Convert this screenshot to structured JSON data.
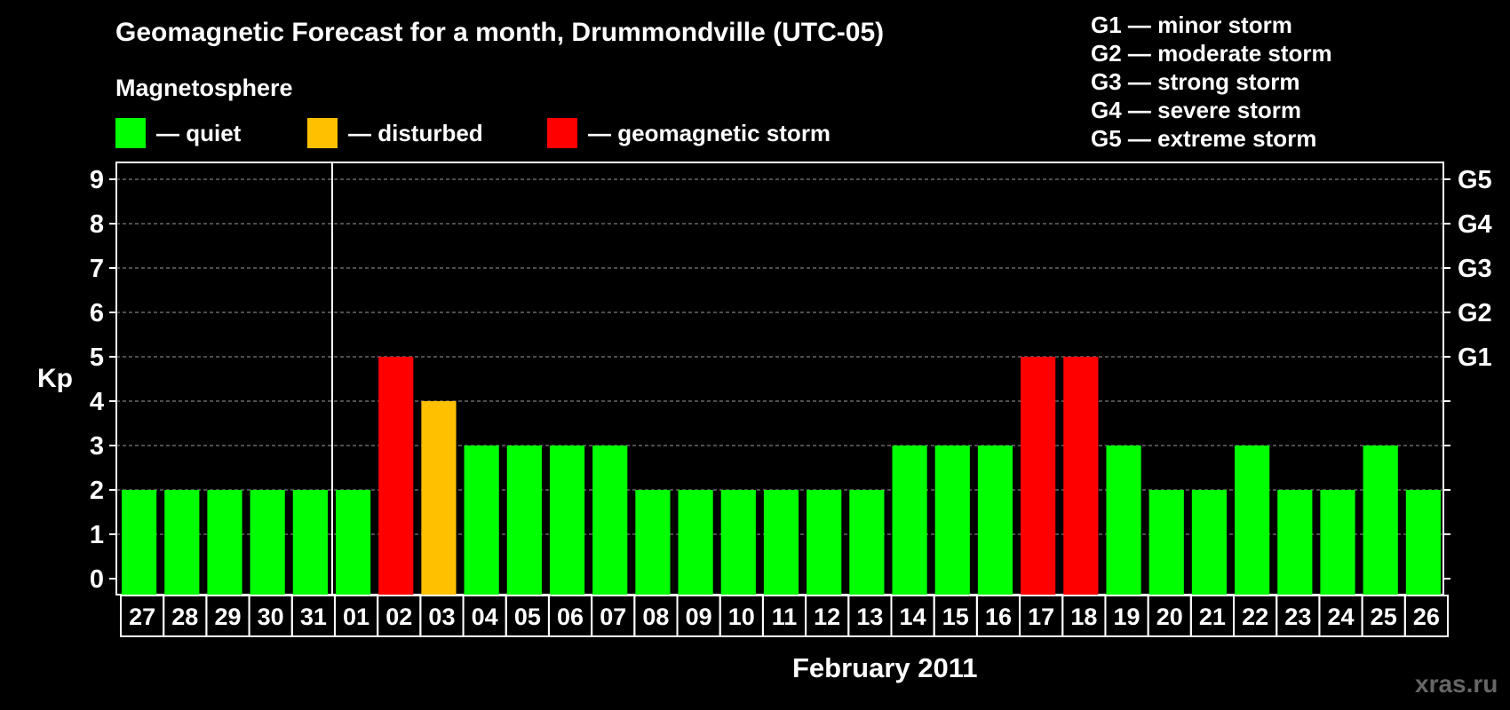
{
  "chart_data": {
    "type": "bar",
    "title": "Geomagnetic Forecast for a month, Drummondville (UTC-05)",
    "subtitle": "Magnetosphere",
    "ylabel": "Kp",
    "xlabel": "February 2011",
    "ylim": [
      0,
      9
    ],
    "yticks": [
      "0",
      "1",
      "2",
      "3",
      "4",
      "5",
      "6",
      "7",
      "8",
      "9"
    ],
    "right_ticks": [
      {
        "value": 5,
        "label": "G1"
      },
      {
        "value": 6,
        "label": "G2"
      },
      {
        "value": 7,
        "label": "G3"
      },
      {
        "value": 8,
        "label": "G4"
      },
      {
        "value": 9,
        "label": "G5"
      }
    ],
    "categories": [
      "27",
      "28",
      "29",
      "30",
      "31",
      "01",
      "02",
      "03",
      "04",
      "05",
      "06",
      "07",
      "08",
      "09",
      "10",
      "11",
      "12",
      "13",
      "14",
      "15",
      "16",
      "17",
      "18",
      "19",
      "20",
      "21",
      "22",
      "23",
      "24",
      "25",
      "26"
    ],
    "values": [
      2,
      2,
      2,
      2,
      2,
      2,
      5,
      4,
      3,
      3,
      3,
      3,
      2,
      2,
      2,
      2,
      2,
      2,
      3,
      3,
      3,
      5,
      5,
      3,
      2,
      2,
      3,
      2,
      2,
      3,
      2
    ],
    "status": [
      "quiet",
      "quiet",
      "quiet",
      "quiet",
      "quiet",
      "quiet",
      "storm",
      "disturbed",
      "quiet",
      "quiet",
      "quiet",
      "quiet",
      "quiet",
      "quiet",
      "quiet",
      "quiet",
      "quiet",
      "quiet",
      "quiet",
      "quiet",
      "quiet",
      "storm",
      "storm",
      "quiet",
      "quiet",
      "quiet",
      "quiet",
      "quiet",
      "quiet",
      "quiet",
      "quiet"
    ],
    "month_divider_after_index": 4,
    "legend": [
      {
        "key": "quiet",
        "label": "— quiet",
        "color": "#00ff00"
      },
      {
        "key": "disturbed",
        "label": "— disturbed",
        "color": "#ffc000"
      },
      {
        "key": "storm",
        "label": "— geomagnetic storm",
        "color": "#ff0000"
      }
    ],
    "storm_scale": [
      "G1 — minor storm",
      "G2 — moderate storm",
      "G3 — strong storm",
      "G4 — severe storm",
      "G5 — extreme storm"
    ],
    "grid": true
  },
  "watermark": "xras.ru"
}
